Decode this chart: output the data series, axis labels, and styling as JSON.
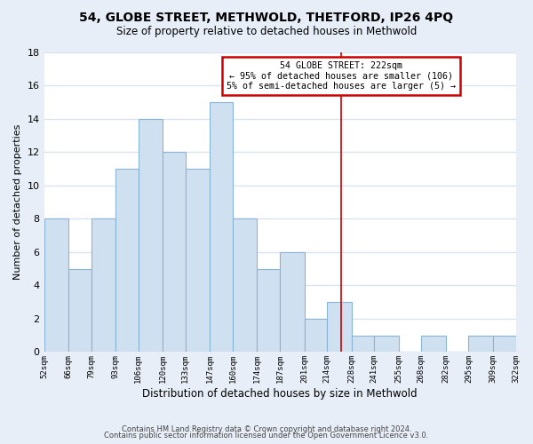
{
  "title": "54, GLOBE STREET, METHWOLD, THETFORD, IP26 4PQ",
  "subtitle": "Size of property relative to detached houses in Methwold",
  "xlabel": "Distribution of detached houses by size in Methwold",
  "ylabel": "Number of detached properties",
  "bin_edges": [
    52,
    66,
    79,
    93,
    106,
    120,
    133,
    147,
    160,
    174,
    187,
    201,
    214,
    228,
    241,
    255,
    268,
    282,
    295,
    309,
    322
  ],
  "counts": [
    8,
    5,
    8,
    11,
    14,
    12,
    11,
    15,
    8,
    5,
    6,
    2,
    3,
    1,
    1,
    0,
    1,
    0,
    1,
    1
  ],
  "bar_color": "#cfe0f0",
  "bar_edge_color": "#8ab4d4",
  "vline_x": 222,
  "vline_color": "#cc0000",
  "ylim": [
    0,
    18
  ],
  "yticks": [
    0,
    2,
    4,
    6,
    8,
    10,
    12,
    14,
    16,
    18
  ],
  "annotation_title": "54 GLOBE STREET: 222sqm",
  "annotation_line1": "← 95% of detached houses are smaller (106)",
  "annotation_line2": "5% of semi-detached houses are larger (5) →",
  "annotation_box_color": "#cc0000",
  "footer_line1": "Contains HM Land Registry data © Crown copyright and database right 2024.",
  "footer_line2": "Contains public sector information licensed under the Open Government Licence v3.0.",
  "bg_color": "#e8eef8",
  "plot_bg_color": "#ffffff",
  "grid_color": "#d8e4f0",
  "tick_labels": [
    "52sqm",
    "66sqm",
    "79sqm",
    "93sqm",
    "106sqm",
    "120sqm",
    "133sqm",
    "147sqm",
    "160sqm",
    "174sqm",
    "187sqm",
    "201sqm",
    "214sqm",
    "228sqm",
    "241sqm",
    "255sqm",
    "268sqm",
    "282sqm",
    "295sqm",
    "309sqm",
    "322sqm"
  ]
}
